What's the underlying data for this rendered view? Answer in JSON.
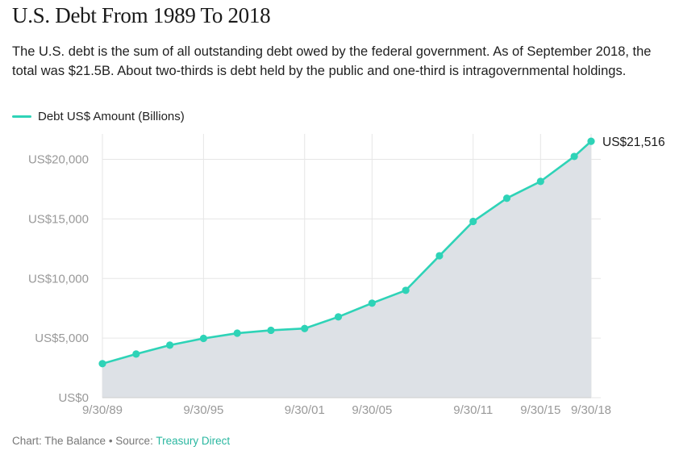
{
  "title": "U.S. Debt From 1989 To 2018",
  "subtitle": "The U.S. debt is the sum of all outstanding debt owed by the federal government. As of September 2018, the total was $21.5B. About two-thirds is debt held by the public and one-third is intragovernmental holdings.",
  "colors": {
    "line": "#2ed3b7",
    "area": "#dde1e6",
    "grid": "#e6e6e6",
    "axis_text": "#999999",
    "source_link": "#2ab7a0"
  },
  "footer": {
    "prefix": "Chart: The Balance • Source: ",
    "source_link": "Treasury Direct"
  },
  "chart_data": {
    "type": "area",
    "title": "U.S. Debt From 1989 To 2018",
    "xlabel": "",
    "ylabel": "",
    "legend": {
      "label": "Debt US$ Amount (Billions)",
      "placement": "top-left"
    },
    "ylim": [
      0,
      22000
    ],
    "xlim": [
      1989.75,
      2018.75
    ],
    "grid": true,
    "y_ticks": [
      {
        "value": 0,
        "label": "US$0"
      },
      {
        "value": 5000,
        "label": "US$5,000"
      },
      {
        "value": 10000,
        "label": "US$10,000"
      },
      {
        "value": 15000,
        "label": "US$15,000"
      },
      {
        "value": 20000,
        "label": "US$20,000"
      }
    ],
    "x_ticks": [
      {
        "value": 1989.75,
        "label": "9/30/89"
      },
      {
        "value": 1995.75,
        "label": "9/30/95"
      },
      {
        "value": 2001.75,
        "label": "9/30/01"
      },
      {
        "value": 2005.75,
        "label": "9/30/05"
      },
      {
        "value": 2011.75,
        "label": "9/30/11"
      },
      {
        "value": 2015.75,
        "label": "9/30/15"
      },
      {
        "value": 2018.75,
        "label": "9/30/18"
      }
    ],
    "end_label": "US$21,516",
    "series": [
      {
        "name": "Debt US$ Amount (Billions)",
        "x": [
          1989.75,
          1991.75,
          1993.75,
          1995.75,
          1997.75,
          1999.75,
          2001.75,
          2003.75,
          2005.75,
          2007.75,
          2009.75,
          2011.75,
          2013.75,
          2015.75,
          2017.75,
          2018.75
        ],
        "values": [
          2857,
          3665,
          4411,
          4974,
          5413,
          5656,
          5807,
          6783,
          7933,
          9008,
          11910,
          14790,
          16738,
          18151,
          20245,
          21516
        ]
      }
    ]
  }
}
